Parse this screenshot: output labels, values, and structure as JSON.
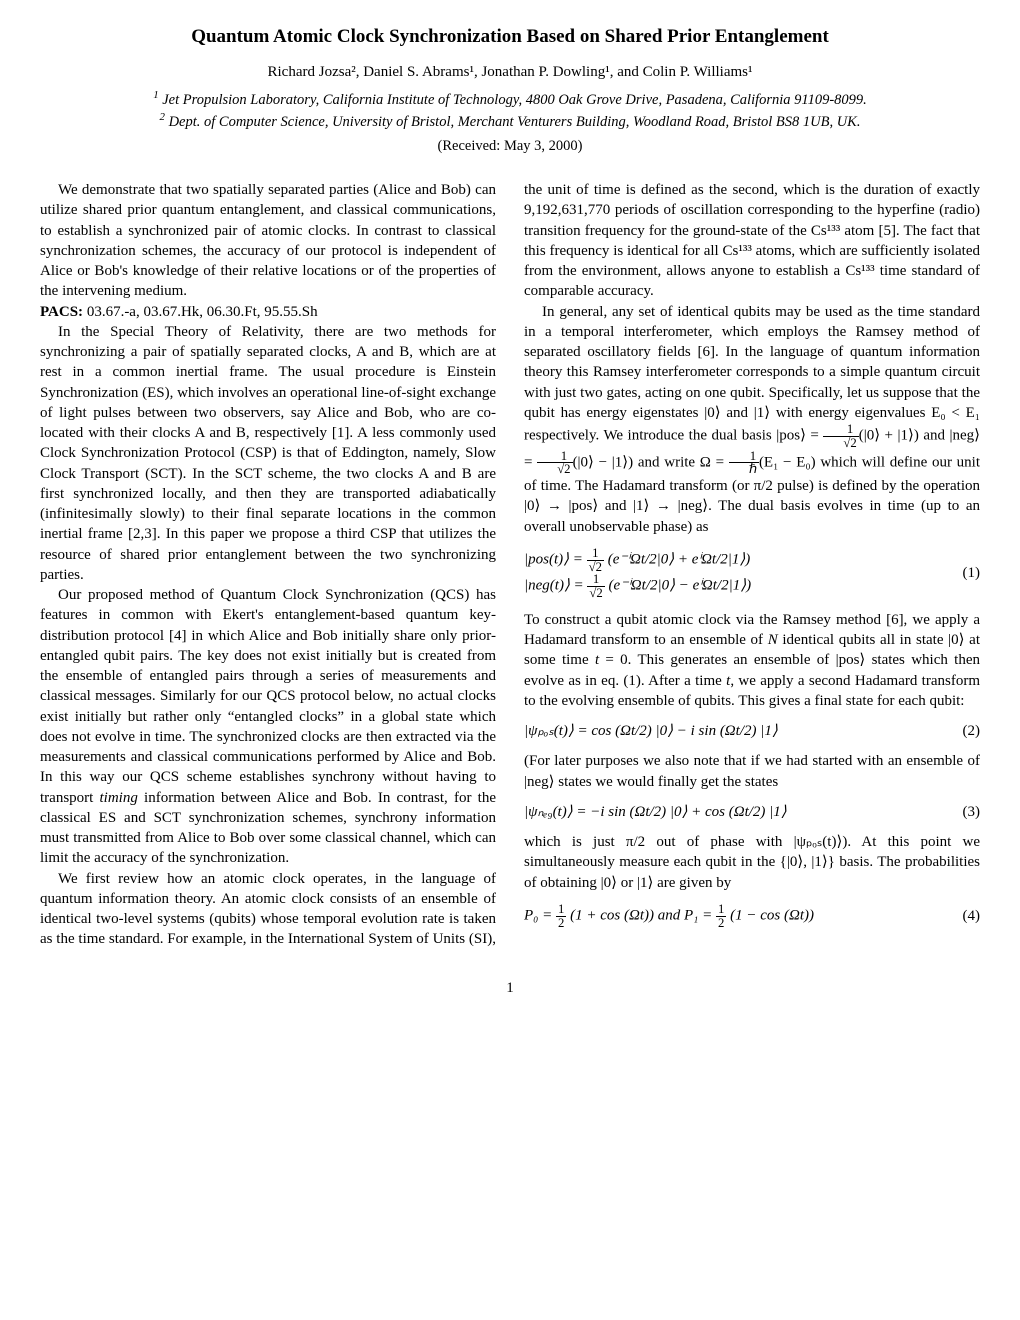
{
  "title": "Quantum Atomic Clock Synchronization Based on Shared Prior Entanglement",
  "authors": "Richard Jozsa², Daniel S. Abrams¹, Jonathan P. Dowling¹, and Colin P. Williams¹",
  "affil1_sup": "1",
  "affil1": " Jet Propulsion Laboratory, California Institute of Technology, 4800 Oak Grove Drive, Pasadena, California 91109-8099.",
  "affil2_sup": "2",
  "affil2": " Dept. of Computer Science, University of Bristol, Merchant Venturers Building, Woodland Road, Bristol BS8 1UB, UK.",
  "received": "(Received: May 3, 2000)",
  "abstract": "We demonstrate that two spatially separated parties (Alice and Bob) can utilize shared prior quantum entanglement, and classical communications, to establish a synchronized pair of atomic clocks. In contrast to classical synchronization schemes, the accuracy of our protocol is independent of Alice or Bob's knowledge of their relative locations or of the properties of the intervening medium.",
  "pacs_label": "PACS:",
  "pacs": " 03.67.-a, 03.67.Hk, 06.30.Ft, 95.55.Sh",
  "p1": "In the Special Theory of Relativity, there are two methods for synchronizing a pair of spatially separated clocks, A and B, which are at rest in a common inertial frame. The usual procedure is Einstein Synchronization (ES), which involves an operational line-of-sight exchange of light pulses between two observers, say Alice and Bob, who are co-located with their clocks A and B, respectively [1]. A less commonly used Clock Synchronization Protocol (CSP) is that of Eddington, namely, Slow Clock Transport (SCT). In the SCT scheme, the two clocks A and B are first synchronized locally, and then they are transported adiabatically (infinitesimally slowly) to their final separate locations in the common inertial frame [2,3]. In this paper we propose a third CSP that utilizes the resource of shared prior entanglement between the two synchronizing parties.",
  "p2a": "Our proposed method of Quantum Clock Synchronization (QCS) has features in common with Ekert's entanglement-based quantum key-distribution protocol [4] in which Alice and Bob initially share only prior-entangled qubit pairs. The key does not exist initially but is created from the ensemble of entangled pairs through a series of measurements and classical messages. Similarly for our QCS protocol below, no actual clocks exist initially but rather only “entangled clocks” in a global state which does not evolve in time. The synchronized clocks are then extracted via the measurements and classical communications performed by Alice and Bob. In this way our QCS scheme establishes synchrony without having to transport ",
  "p2_em": "timing",
  "p2b": " information between Alice and Bob. In contrast, for the classical ES and SCT synchronization schemes, synchrony information must transmitted from Alice to Bob over some classical channel, which can limit the accuracy of the synchronization.",
  "p3": "We first review how an atomic clock operates, in the language of quantum information theory. An atomic clock consists of an ensemble of identical two-level systems (qubits) whose temporal evolution rate is taken as the time standard. For example, in the International System of Units (SI), the unit of time is defined as the second, which is the duration of exactly 9,192,631,770 periods of oscillation corresponding to the hyperfine (radio) transition frequency for the ground-state of the Cs¹³³ atom [5]. The fact that this frequency is identical for all Cs¹³³ atoms, which are sufficiently isolated from the environment, allows anyone to establish a Cs¹³³ time standard of comparable accuracy.",
  "p4a": "In general, any set of identical qubits may be used as the time standard in a temporal interferometer, which employs the Ramsey method of separated oscillatory fields [6]. In the language of quantum information theory this Ramsey interferometer corresponds to a simple quantum circuit with just two gates, acting on one qubit. Specifically, let us suppose that the qubit has energy eigenstates |0⟩ and |1⟩ with energy eigenvalues E₀ < E₁ respectively. We introduce the dual basis |pos⟩ = ",
  "p4b": "(|0⟩ + |1⟩) and |neg⟩ = ",
  "p4c": "(|0⟩ − |1⟩) and write Ω = ",
  "p4d": "(E₁ − E₀) which will define our unit of time. The Hadamard transform (or π/2 pulse) is defined by the operation |0⟩ → |pos⟩ and |1⟩ → |neg⟩. The dual basis evolves in time (up to an overall unobservable phase) as",
  "eq1_line1": "|pos(t)⟩  =  ",
  "eq1_line1b": " (e⁻ⁱΩt/2|0⟩ + eⁱΩt/2|1⟩)",
  "eq1_line2": "|neg(t)⟩  =  ",
  "eq1_line2b": " (e⁻ⁱΩt/2|0⟩ − eⁱΩt/2|1⟩)",
  "eq1_num": "(1)",
  "p5a": "To construct a qubit atomic clock via the Ramsey method [6], we apply a Hadamard transform to an ensemble of ",
  "p5_em1": "N",
  "p5b": " identical qubits all in state |0⟩ at some time ",
  "p5_em2": "t",
  "p5c": " = 0. This generates an ensemble of |pos⟩ states which then evolve as in eq. (1). After a time ",
  "p5_em3": "t",
  "p5d": ", we apply a second Hadamard transform to the evolving ensemble of qubits. This gives a final state for each qubit:",
  "eq2": "|ψₚₒₛ(t)⟩ = cos (Ωt/2) |0⟩ − i sin (Ωt/2) |1⟩",
  "eq2_num": "(2)",
  "p6": "(For later purposes we also note that if we had started with an ensemble of |neg⟩ states we would finally get the states",
  "eq3": "|ψₙₑ₉(t)⟩ = −i sin (Ωt/2) |0⟩ + cos (Ωt/2) |1⟩",
  "eq3_num": "(3)",
  "p7": "which is just π/2 out of phase with |ψₚₒₛ(t)⟩). At this point we simultaneously measure each qubit in the {|0⟩, |1⟩} basis. The probabilities of obtaining |0⟩ or |1⟩ are given by",
  "eq4a": "P₀ = ",
  "eq4b": " (1 + cos (Ωt))  and  P₁ = ",
  "eq4c": " (1 − cos (Ωt))",
  "eq4_num": "(4)",
  "pagenum": "1",
  "frac_1": "1",
  "frac_2": "2",
  "frac_sqrt2": "√2",
  "frac_hbar": "ℏ"
}
